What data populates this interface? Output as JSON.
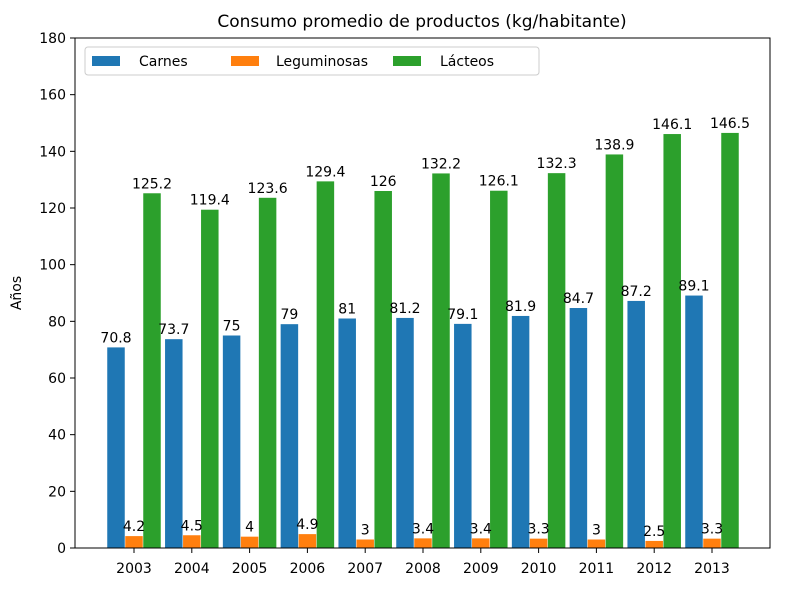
{
  "chart_data": {
    "type": "bar",
    "title": "Consumo promedio de productos (kg/habitante)",
    "xlabel": "",
    "ylabel": "Años",
    "ylim": [
      0,
      180
    ],
    "yticks": [
      0,
      20,
      40,
      60,
      80,
      100,
      120,
      140,
      160,
      180
    ],
    "categories": [
      "2003",
      "2004",
      "2005",
      "2006",
      "2007",
      "2008",
      "2009",
      "2010",
      "2011",
      "2012",
      "2013"
    ],
    "series": [
      {
        "name": "Carnes",
        "color": "#1f77b4",
        "values": [
          70.8,
          73.7,
          75,
          79,
          81,
          81.2,
          79.1,
          81.9,
          84.7,
          87.2,
          89.1
        ]
      },
      {
        "name": "Leguminosas",
        "color": "#ff7f0e",
        "values": [
          4.2,
          4.5,
          4,
          4.9,
          3,
          3.4,
          3.4,
          3.3,
          3,
          2.5,
          3.3
        ]
      },
      {
        "name": "Lácteos",
        "color": "#2ca02c",
        "values": [
          125.2,
          119.4,
          123.6,
          129.4,
          126,
          132.2,
          126.1,
          132.3,
          138.9,
          146.1,
          146.5
        ]
      }
    ],
    "legend": "top-left",
    "grid": false
  }
}
